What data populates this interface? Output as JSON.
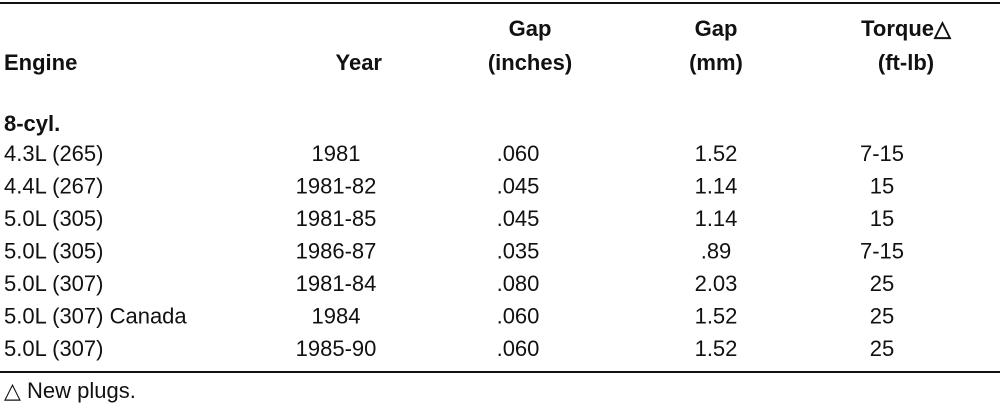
{
  "table": {
    "header": [
      {
        "lines": [
          "Engine"
        ]
      },
      {
        "lines": [
          "Year"
        ]
      },
      {
        "lines": [
          "Gap",
          "(inches)"
        ]
      },
      {
        "lines": [
          "Gap",
          "(mm)"
        ]
      },
      {
        "lines": [
          "Torque△",
          "(ft-lb)"
        ]
      }
    ],
    "section": "8-cyl.",
    "rows": [
      [
        "4.3L (265)",
        "1981",
        ".060",
        "1.52",
        "7-15"
      ],
      [
        "4.4L (267)",
        "1981-82",
        ".045",
        "1.14",
        "15"
      ],
      [
        "5.0L (305)",
        "1981-85",
        ".045",
        "1.14",
        "15"
      ],
      [
        "5.0L (305)",
        "1986-87",
        ".035",
        ".89",
        "7-15"
      ],
      [
        "5.0L (307)",
        "1981-84",
        ".080",
        "2.03",
        "25"
      ],
      [
        "5.0L (307) Canada",
        "1984",
        ".060",
        "1.52",
        "25"
      ],
      [
        "5.0L (307)",
        "1985-90",
        ".060",
        "1.52",
        "25"
      ]
    ],
    "footnote": "△ New plugs."
  }
}
